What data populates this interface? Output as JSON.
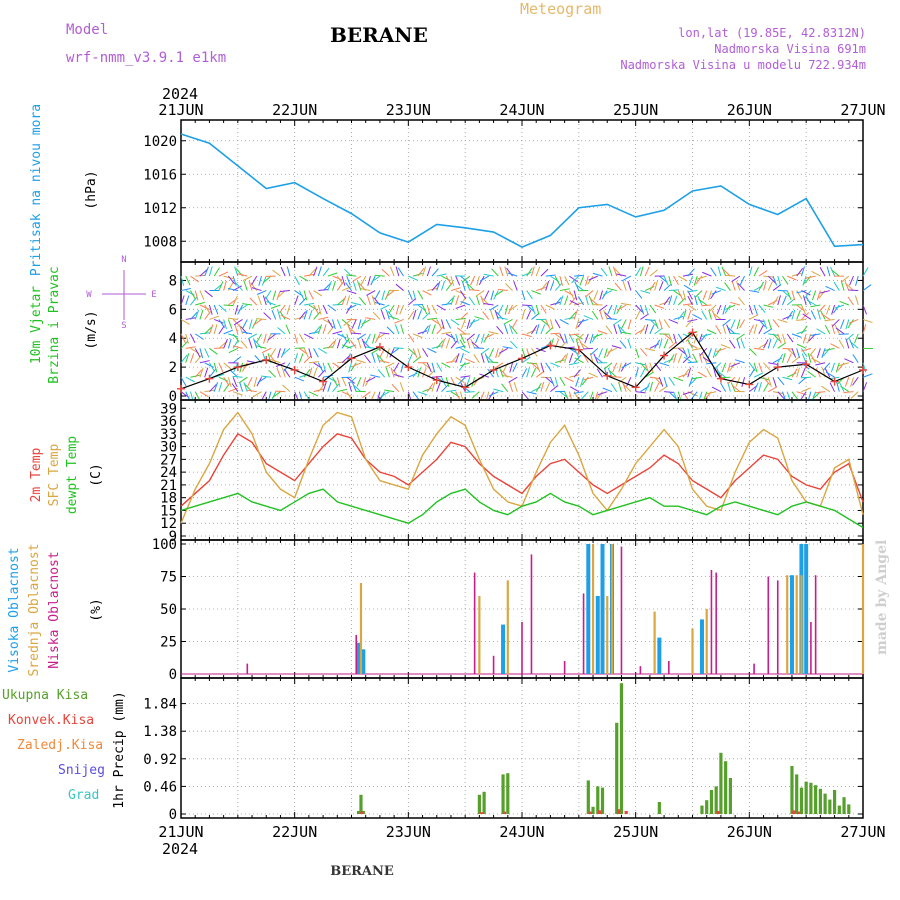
{
  "header": {
    "model_label": "Model",
    "model_name": "wrf-nmm_v3.9.1 e1km",
    "station": "BERANE",
    "meteogram_label": "Meteogram",
    "lonlat": "lon,lat (19.85E, 42.8312N)",
    "elevation": "Nadmorska Visina 691m",
    "model_elevation": "Nadmorska Visina u modelu 722.934m",
    "year_top": "2024",
    "year_bottom": "2024",
    "footer_station": "BERANE",
    "watermark": "made by Angel"
  },
  "colors": {
    "pressure": "#1ea0e6",
    "temp2m": "#e8443a",
    "sfc": "#d9a640",
    "dewpt": "#22c122",
    "high_cloud": "#1ea0e6",
    "mid_cloud": "#d9a640",
    "low_cloud": "#c81e8c",
    "total_precip": "#55a02a",
    "conv_precip": "#e8443a",
    "freezing_precip": "#f08a3a",
    "snow": "#5a4ee0",
    "graupel": "#3ac4c4",
    "wind_arrows": [
      "#8a2be2",
      "#1e90ff",
      "#20c8c8",
      "#32cd32",
      "#ff7f50",
      "#d9a640"
    ]
  },
  "chart_data": [
    {
      "type": "line",
      "title": "Pritisak na nivou mora",
      "ylabel": "(hPa)",
      "ylim": [
        1006,
        1022
      ],
      "yticks": [
        "1008",
        "1012",
        "1016",
        "1020"
      ],
      "x": [
        0,
        6,
        12,
        18,
        24,
        30,
        36,
        42,
        48,
        54,
        60,
        66,
        72,
        78,
        84,
        90,
        96,
        102,
        108,
        114,
        120,
        126,
        132,
        138,
        144
      ],
      "series": [
        {
          "name": "Pritisak",
          "values": [
            1020.8,
            1019.7,
            1017.0,
            1014.3,
            1015.0,
            1013.1,
            1011.3,
            1009.0,
            1007.9,
            1010.0,
            1009.6,
            1009.1,
            1007.3,
            1008.7,
            1012.0,
            1012.4,
            1010.9,
            1011.7,
            1014.0,
            1014.6,
            1012.4,
            1011.2,
            1013.1,
            1007.4,
            1007.6
          ]
        }
      ],
      "grid": true
    },
    {
      "type": "line",
      "title": "10m Vjetar Brzina i Pravac",
      "ylabel": "(m/s)",
      "ylim": [
        0,
        9
      ],
      "yticks": [
        "0",
        "2",
        "4",
        "6",
        "8"
      ],
      "legend_labels": {
        "n": "N",
        "w": "W",
        "e": "E",
        "s": "S"
      },
      "x": [
        0,
        6,
        12,
        18,
        24,
        30,
        36,
        42,
        48,
        54,
        60,
        66,
        72,
        78,
        84,
        90,
        96,
        102,
        108,
        114,
        120,
        126,
        132,
        138,
        144
      ],
      "series": [
        {
          "name": "Brzina",
          "values": [
            0.5,
            1.2,
            2.0,
            2.5,
            1.8,
            1.0,
            2.6,
            3.4,
            2.0,
            1.1,
            0.6,
            1.8,
            2.6,
            3.5,
            3.2,
            1.4,
            0.6,
            2.8,
            4.4,
            1.2,
            0.8,
            2.0,
            2.2,
            1.0,
            1.8
          ]
        }
      ],
      "grid": true
    },
    {
      "type": "line",
      "title": "2m Temp / SFC Temp / dewpt Temp",
      "ylabel": "(C)",
      "ylim": [
        9,
        40
      ],
      "yticks": [
        "9",
        "12",
        "15",
        "18",
        "21",
        "24",
        "27",
        "30",
        "33",
        "36",
        "39"
      ],
      "x": [
        0,
        3,
        6,
        9,
        12,
        15,
        18,
        21,
        24,
        27,
        30,
        33,
        36,
        39,
        42,
        45,
        48,
        51,
        54,
        57,
        60,
        63,
        66,
        69,
        72,
        75,
        78,
        81,
        84,
        87,
        90,
        93,
        96,
        99,
        102,
        105,
        108,
        111,
        114,
        117,
        120,
        123,
        126,
        129,
        132,
        135,
        138,
        141,
        144
      ],
      "series": [
        {
          "name": "2m Temp",
          "values": [
            16,
            19,
            22,
            28,
            33,
            31,
            26,
            24,
            22,
            26,
            30,
            33,
            32,
            27,
            24,
            23,
            21,
            24,
            27,
            31,
            30,
            26,
            23,
            21,
            19,
            23,
            26,
            27,
            24,
            21,
            19,
            21,
            23,
            25,
            28,
            26,
            22,
            20,
            18,
            22,
            25,
            28,
            27,
            23,
            21,
            20,
            24,
            26,
            17
          ]
        },
        {
          "name": "SFC Temp",
          "values": [
            12,
            20,
            26,
            34,
            38,
            33,
            24,
            20,
            18,
            27,
            35,
            38,
            37,
            27,
            22,
            21,
            20,
            28,
            33,
            37,
            35,
            27,
            20,
            17,
            16,
            24,
            31,
            35,
            28,
            19,
            15,
            20,
            26,
            30,
            34,
            30,
            20,
            16,
            15,
            24,
            31,
            34,
            32,
            22,
            17,
            16,
            25,
            27,
            14
          ]
        },
        {
          "name": "dewpt Temp",
          "values": [
            15,
            16,
            17,
            18,
            19,
            17,
            16,
            15,
            17,
            19,
            20,
            17,
            16,
            15,
            14,
            13,
            12,
            14,
            17,
            19,
            20,
            17,
            15,
            14,
            16,
            17,
            19,
            17,
            16,
            14,
            15,
            16,
            17,
            18,
            16,
            16,
            15,
            14,
            16,
            17,
            16,
            15,
            14,
            16,
            17,
            16,
            15,
            13,
            11
          ]
        }
      ],
      "grid": true
    },
    {
      "type": "bar",
      "title": "Visoka Oblacnost / Srednja Oblacnost / Niska Oblacnost",
      "ylabel": "(%)",
      "ylim": [
        0,
        100
      ],
      "yticks": [
        "0",
        "25",
        "50",
        "75",
        "100"
      ],
      "series": [
        {
          "name": "Visoka Oblacnost",
          "points": [
            [
              37.5,
              24
            ],
            [
              38.5,
              19
            ],
            [
              68,
              38
            ],
            [
              86,
              100
            ],
            [
              88,
              60
            ],
            [
              89,
              100
            ],
            [
              91,
              100
            ],
            [
              101,
              28
            ],
            [
              110,
              42
            ],
            [
              129,
              76
            ],
            [
              131,
              100
            ],
            [
              132,
              100
            ]
          ]
        },
        {
          "name": "Srednja Oblacnost",
          "points": [
            [
              38,
              70
            ],
            [
              63,
              60
            ],
            [
              69,
              72
            ],
            [
              87,
              100
            ],
            [
              90,
              60
            ],
            [
              91,
              100
            ],
            [
              100,
              48
            ],
            [
              108,
              35
            ],
            [
              111,
              50
            ],
            [
              128,
              76
            ],
            [
              130,
              76
            ],
            [
              131,
              76
            ],
            [
              144,
              100
            ]
          ]
        },
        {
          "name": "Niska Oblacnost",
          "points": [
            [
              14,
              8
            ],
            [
              37,
              30
            ],
            [
              62,
              78
            ],
            [
              66,
              14
            ],
            [
              72,
              40
            ],
            [
              74,
              92
            ],
            [
              81,
              10
            ],
            [
              85,
              62
            ],
            [
              93,
              98
            ],
            [
              97,
              6
            ],
            [
              103,
              10
            ],
            [
              112,
              80
            ],
            [
              113,
              78
            ],
            [
              121,
              8
            ],
            [
              124,
              75
            ],
            [
              126,
              72
            ],
            [
              133,
              40
            ],
            [
              134,
              76
            ]
          ]
        }
      ],
      "grid": true
    },
    {
      "type": "bar",
      "title": "Ukupna Kisa / Konvek.Kisa / Zaledj.Kisa / Snijeg / Grad",
      "ylabel": "1hr Precip (mm)",
      "ylim": [
        0,
        2.2
      ],
      "yticks": [
        "0",
        "0.46",
        "0.92",
        "1.38",
        "1.84"
      ],
      "x_labels": [
        "21JUN",
        "22JUN",
        "23JUN",
        "24JUN",
        "25JUN",
        "26JUN",
        "27JUN"
      ],
      "series": [
        {
          "name": "Ukupna Kisa",
          "points": [
            [
              37.5,
              0.05
            ],
            [
              38,
              0.32
            ],
            [
              38.5,
              0.05
            ],
            [
              63,
              0.32
            ],
            [
              64,
              0.37
            ],
            [
              68,
              0.66
            ],
            [
              69,
              0.68
            ],
            [
              86,
              0.56
            ],
            [
              87,
              0.12
            ],
            [
              88,
              0.46
            ],
            [
              89,
              0.44
            ],
            [
              92,
              1.52
            ],
            [
              93,
              2.18
            ],
            [
              101,
              0.2
            ],
            [
              110,
              0.14
            ],
            [
              111,
              0.23
            ],
            [
              112,
              0.4
            ],
            [
              113,
              0.46
            ],
            [
              114,
              1.02
            ],
            [
              115,
              0.88
            ],
            [
              116,
              0.6
            ],
            [
              129,
              0.8
            ],
            [
              130,
              0.66
            ],
            [
              131,
              0.44
            ],
            [
              132,
              0.54
            ],
            [
              133,
              0.52
            ],
            [
              134,
              0.48
            ],
            [
              135,
              0.42
            ],
            [
              136,
              0.34
            ],
            [
              137,
              0.24
            ],
            [
              138,
              0.4
            ],
            [
              139,
              0.14
            ],
            [
              140,
              0.28
            ],
            [
              141,
              0.16
            ]
          ]
        },
        {
          "name": "Konvek.Kisa",
          "points": [
            [
              38.2,
              0.04
            ],
            [
              63.5,
              0.03
            ],
            [
              68.3,
              0.04
            ],
            [
              86.4,
              0.04
            ],
            [
              88.4,
              0.06
            ],
            [
              92.4,
              0.08
            ],
            [
              94,
              0.05
            ],
            [
              113.4,
              0.05
            ],
            [
              129.4,
              0.06
            ],
            [
              130.4,
              0.04
            ]
          ]
        },
        {
          "name": "Zaledj.Kisa",
          "points": []
        },
        {
          "name": "Snijeg",
          "points": []
        },
        {
          "name": "Grad",
          "points": []
        }
      ],
      "grid": true
    }
  ]
}
